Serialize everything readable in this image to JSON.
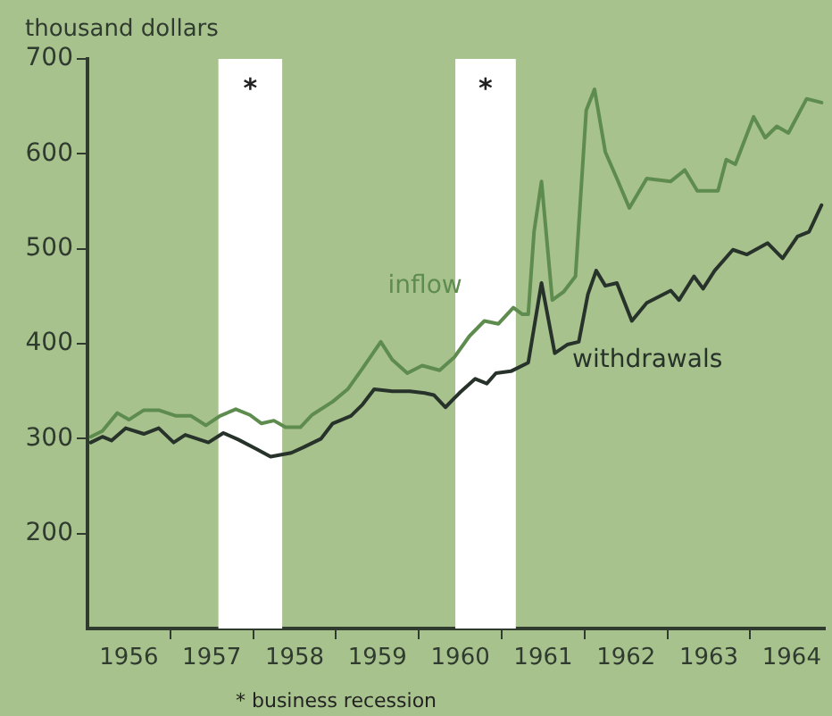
{
  "chart_data": {
    "type": "line",
    "ylabel": "thousand dollars",
    "xlim": [
      1956,
      1964.9
    ],
    "ylim": [
      100,
      700
    ],
    "yticks": [
      200,
      300,
      400,
      500,
      600,
      700
    ],
    "xticks": [
      {
        "value": 1956.5,
        "label": "1956"
      },
      {
        "value": 1957,
        "label": null
      },
      {
        "value": 1957.5,
        "label": "1957"
      },
      {
        "value": 1958,
        "label": null
      },
      {
        "value": 1958.5,
        "label": "1958"
      },
      {
        "value": 1959,
        "label": null
      },
      {
        "value": 1959.5,
        "label": "1959"
      },
      {
        "value": 1960,
        "label": null
      },
      {
        "value": 1960.5,
        "label": "1960"
      },
      {
        "value": 1961,
        "label": null
      },
      {
        "value": 1961.5,
        "label": "1961"
      },
      {
        "value": 1962,
        "label": null
      },
      {
        "value": 1962.5,
        "label": "1962"
      },
      {
        "value": 1963,
        "label": null
      },
      {
        "value": 1963.5,
        "label": "1963"
      },
      {
        "value": 1964,
        "label": null
      },
      {
        "value": 1964.5,
        "label": "1964"
      }
    ],
    "grid": false,
    "legend": false,
    "marker": "none",
    "line_style": "solid",
    "series": [
      {
        "name": "inflow",
        "color": "#5e8c4e",
        "x": [
          1956.04,
          1956.18,
          1956.36,
          1956.5,
          1956.68,
          1956.86,
          1957.07,
          1957.25,
          1957.43,
          1957.6,
          1957.79,
          1957.96,
          1958.1,
          1958.25,
          1958.39,
          1958.57,
          1958.71,
          1958.96,
          1959.14,
          1959.32,
          1959.54,
          1959.68,
          1959.86,
          1960.04,
          1960.25,
          1960.43,
          1960.61,
          1960.79,
          1960.96,
          1961.14,
          1961.25,
          1961.32,
          1961.39,
          1961.48,
          1961.61,
          1961.75,
          1961.89,
          1962.02,
          1962.12,
          1962.25,
          1962.39,
          1962.54,
          1962.75,
          1963.04,
          1963.21,
          1963.36,
          1963.61,
          1963.71,
          1963.82,
          1964.04,
          1964.18,
          1964.32,
          1964.46,
          1964.68,
          1964.86
        ],
        "values": [
          302,
          308,
          327,
          320,
          330,
          330,
          324,
          324,
          314,
          324,
          331,
          325,
          316,
          319,
          312,
          312,
          325,
          339,
          352,
          374,
          402,
          383,
          369,
          377,
          372,
          386,
          408,
          424,
          421,
          438,
          431,
          431,
          518,
          571,
          446,
          455,
          471,
          646,
          668,
          602,
          574,
          543,
          574,
          571,
          583,
          561,
          561,
          594,
          589,
          639,
          617,
          629,
          622,
          658,
          654
        ]
      },
      {
        "name": "withdrawals",
        "color": "#27332a",
        "x": [
          1956.04,
          1956.18,
          1956.29,
          1956.46,
          1956.68,
          1956.86,
          1957.04,
          1957.18,
          1957.46,
          1957.64,
          1957.82,
          1958.04,
          1958.21,
          1958.46,
          1958.61,
          1958.82,
          1958.96,
          1959.18,
          1959.32,
          1959.46,
          1959.68,
          1959.89,
          1960.07,
          1960.18,
          1960.32,
          1960.5,
          1960.68,
          1960.82,
          1960.93,
          1961.11,
          1961.32,
          1961.48,
          1961.64,
          1961.79,
          1961.93,
          1962.04,
          1962.14,
          1962.25,
          1962.39,
          1962.57,
          1962.75,
          1963.04,
          1963.14,
          1963.32,
          1963.43,
          1963.57,
          1963.79,
          1963.96,
          1964.21,
          1964.39,
          1964.57,
          1964.71,
          1964.86
        ],
        "values": [
          296,
          302,
          298,
          311,
          305,
          311,
          296,
          304,
          296,
          306,
          299,
          289,
          281,
          285,
          291,
          300,
          316,
          324,
          336,
          352,
          350,
          350,
          348,
          346,
          333,
          349,
          363,
          358,
          369,
          371,
          380,
          464,
          390,
          399,
          402,
          452,
          477,
          461,
          464,
          424,
          443,
          456,
          446,
          471,
          458,
          477,
          499,
          494,
          506,
          490,
          513,
          518,
          546
        ]
      }
    ],
    "bands": [
      {
        "axis": "x",
        "from": 1957.58,
        "to": 1958.35,
        "label": "*",
        "color": "#ffffff"
      },
      {
        "axis": "x",
        "from": 1960.44,
        "to": 1961.17,
        "label": "*",
        "color": "#ffffff"
      }
    ],
    "annotations": [
      "* business recession"
    ]
  }
}
